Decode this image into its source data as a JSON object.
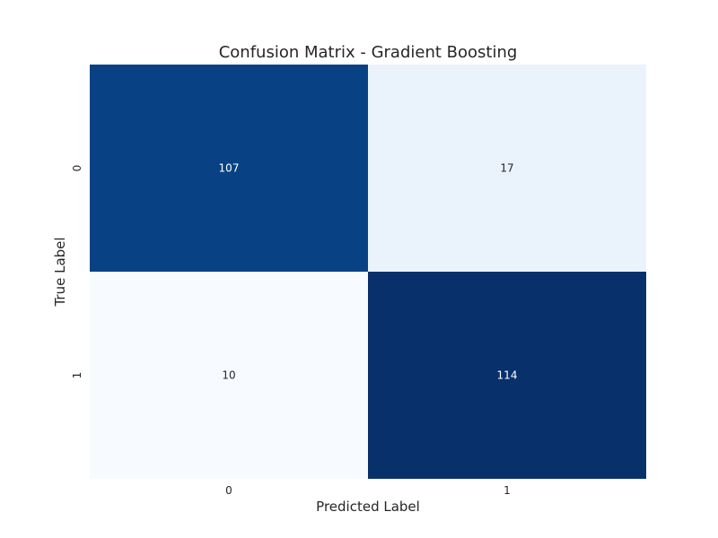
{
  "chart_data": {
    "type": "heatmap",
    "title": "Confusion Matrix - Gradient Boosting",
    "xlabel": "Predicted Label",
    "ylabel": "True Label",
    "x_categories": [
      "0",
      "1"
    ],
    "y_categories": [
      "0",
      "1"
    ],
    "values": [
      [
        107,
        17
      ],
      [
        10,
        114
      ]
    ],
    "colormap": "Blues",
    "colors": {
      "low": "#f7fbff",
      "high": "#08306b"
    },
    "colorbar": false,
    "grid": false,
    "cell_text_colors": {
      "on_dark": "#ffffff",
      "on_light": "#262626"
    }
  }
}
